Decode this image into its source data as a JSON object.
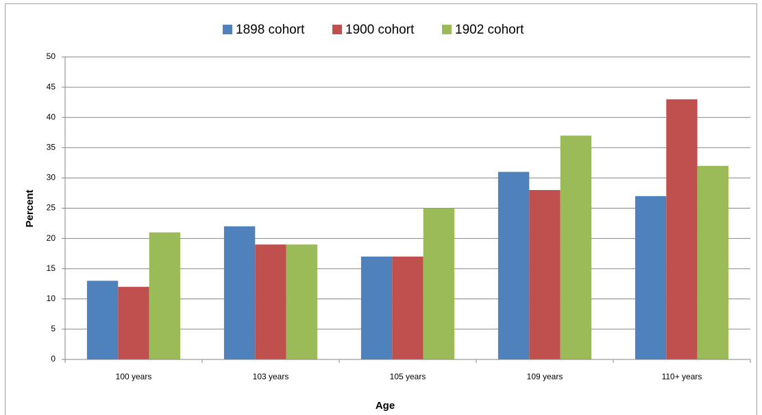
{
  "chart_data": {
    "type": "bar",
    "xlabel": "Age",
    "ylabel": "Percent",
    "categories": [
      "100 years",
      "103 years",
      "105 years",
      "109 years",
      "110+ years"
    ],
    "series": [
      {
        "name": "1898 cohort",
        "color": "#4f81bd",
        "values": [
          13,
          22,
          17,
          31,
          27
        ]
      },
      {
        "name": "1900 cohort",
        "color": "#c0504d",
        "values": [
          12,
          19,
          17,
          28,
          43
        ]
      },
      {
        "name": "1902 cohort",
        "color": "#9bbb59",
        "values": [
          21,
          19,
          25,
          37,
          32
        ]
      }
    ],
    "ylim": [
      0,
      50
    ],
    "yticks": [
      0,
      5,
      10,
      15,
      20,
      25,
      30,
      35,
      40,
      45,
      50
    ],
    "grid": true,
    "legend": "top"
  }
}
